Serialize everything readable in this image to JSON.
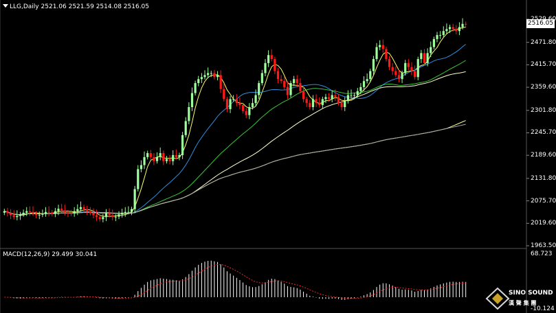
{
  "header": {
    "symbol": "LLG,Daily",
    "open": "2521.06",
    "high": "2521.59",
    "low": "2514.08",
    "close": "2516.05"
  },
  "macd_header": {
    "label": "MACD(12,26,9)",
    "macd": "29.499",
    "signal": "30.041"
  },
  "current_price_label": "2516.05",
  "colors": {
    "background": "#000000",
    "bull_candle": "#9dff9d",
    "bear_candle": "#ff1a1a",
    "ma_fast": "#ffff66",
    "ma_blue": "#2f8fdf",
    "ma_green": "#38c838",
    "ma_white": "#ffffcc",
    "ma_yellow2": "#ffff99",
    "ma_gray": "#aaaaaa",
    "macd_hist": "#ffffff",
    "macd_signal": "#ff2222"
  },
  "logo": {
    "name": "SINO SOUND",
    "sub": "漢 聲 集 團"
  },
  "chart_data": {
    "type": "candlestick",
    "title": "LLG,Daily",
    "y_ticks": [
      "2529.60",
      "2471.80",
      "2415.70",
      "2359.60",
      "2301.80",
      "2245.70",
      "2189.60",
      "2131.80",
      "2075.70",
      "2019.60",
      "1963.50"
    ],
    "ylim": [
      1963.5,
      2529.6
    ],
    "series": [
      {
        "name": "LLG",
        "close": [
          2050,
          2045,
          2040,
          2035,
          2038,
          2042,
          2046,
          2050,
          2048,
          2044,
          2040,
          2041,
          2044,
          2048,
          2047,
          2043,
          2050,
          2056,
          2052,
          2047,
          2045,
          2044,
          2050,
          2055,
          2060,
          2055,
          2050,
          2045,
          2040,
          2035,
          2030,
          2035,
          2045,
          2040,
          2035,
          2036,
          2042,
          2046,
          2048,
          2048,
          2055,
          2105,
          2155,
          2165,
          2185,
          2195,
          2185,
          2175,
          2185,
          2195,
          2175,
          2180,
          2175,
          2190,
          2185,
          2190,
          2240,
          2275,
          2310,
          2345,
          2370,
          2380,
          2385,
          2390,
          2395,
          2395,
          2385,
          2390,
          2355,
          2330,
          2305,
          2330,
          2330,
          2320,
          2315,
          2300,
          2290,
          2310,
          2320,
          2340,
          2370,
          2395,
          2420,
          2440,
          2430,
          2400,
          2380,
          2375,
          2360,
          2340,
          2370,
          2380,
          2370,
          2350,
          2330,
          2320,
          2310,
          2330,
          2320,
          2315,
          2330,
          2335,
          2330,
          2340,
          2335,
          2320,
          2310,
          2325,
          2340,
          2340,
          2340,
          2350,
          2360,
          2375,
          2380,
          2400,
          2430,
          2460,
          2465,
          2455,
          2430,
          2410,
          2400,
          2390,
          2380,
          2395,
          2420,
          2410,
          2400,
          2385,
          2430,
          2445,
          2420,
          2445,
          2460,
          2480,
          2490,
          2490,
          2500,
          2505,
          2510,
          2505,
          2500,
          2510,
          2518,
          2516
        ]
      },
      {
        "name": "MACD",
        "hist_range": [
          -10.124,
          68.723
        ],
        "macd_value": 29.499,
        "signal_value": 30.041
      }
    ],
    "macd_ylim": [
      -10.124,
      68.723
    ]
  }
}
